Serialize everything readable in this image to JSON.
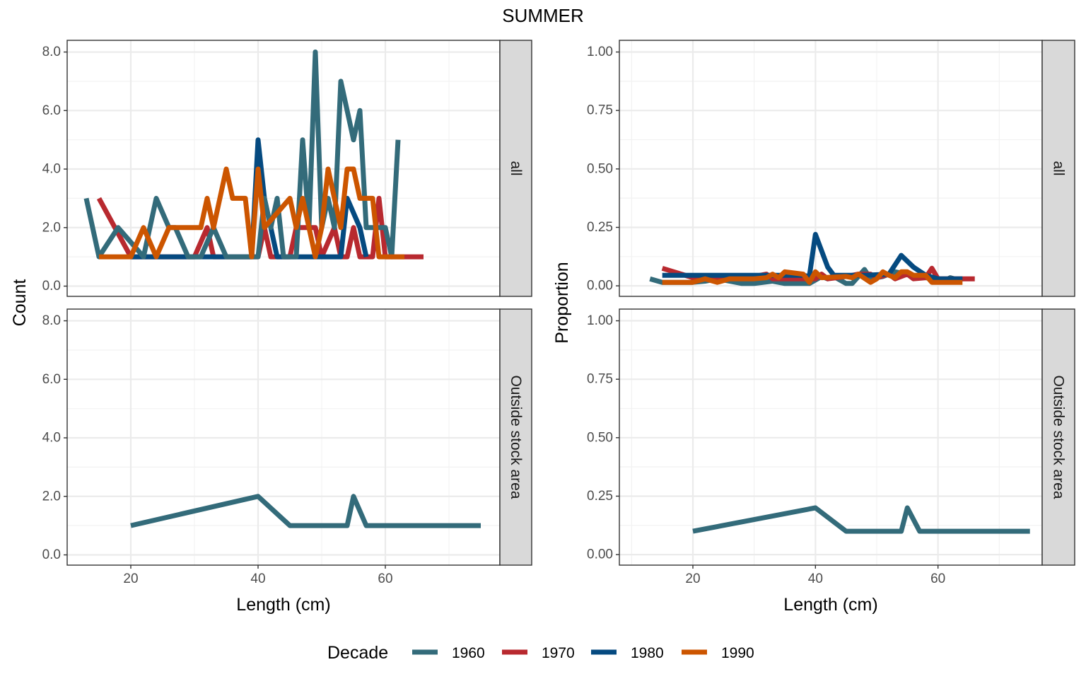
{
  "title": "SUMMER",
  "legend": {
    "title": "Decade",
    "position": "bottom",
    "items": [
      {
        "label": "1960",
        "color": "#336B7A"
      },
      {
        "label": "1970",
        "color": "#B8292F"
      },
      {
        "label": "1980",
        "color": "#054A80"
      },
      {
        "label": "1990",
        "color": "#CC5500"
      }
    ]
  },
  "strips": [
    "all",
    "Outside stock area"
  ],
  "chart_data": [
    {
      "type": "line",
      "xlabel": "Length (cm)",
      "ylabel": "Count",
      "xlim": [
        10,
        78
      ],
      "x_ticks": [
        "20",
        "40",
        "60"
      ],
      "grid": true,
      "facets": [
        {
          "label": "all",
          "ylim": [
            -0.35,
            8.4
          ],
          "y_ticks": [
            "0.0",
            "2.0",
            "4.0",
            "6.0",
            "8.0"
          ],
          "series": [
            {
              "name": "1970",
              "points": [
                [
                  15,
                  3
                ],
                [
                  20,
                  1
                ],
                [
                  30,
                  1
                ],
                [
                  32,
                  2
                ],
                [
                  33,
                  1
                ],
                [
                  40,
                  1
                ],
                [
                  41,
                  2
                ],
                [
                  42,
                  1
                ],
                [
                  45,
                  1
                ],
                [
                  46,
                  2
                ],
                [
                  49,
                  2
                ],
                [
                  50,
                  1
                ],
                [
                  52,
                  2
                ],
                [
                  53,
                  1
                ],
                [
                  54,
                  1
                ],
                [
                  55,
                  2
                ],
                [
                  56,
                  1
                ],
                [
                  58,
                  1
                ],
                [
                  59,
                  3
                ],
                [
                  60,
                  1
                ],
                [
                  66,
                  1
                ]
              ]
            },
            {
              "name": "1980",
              "points": [
                [
                  20,
                  1
                ],
                [
                  39,
                  1
                ],
                [
                  40,
                  5
                ],
                [
                  41,
                  3
                ],
                [
                  42,
                  2
                ],
                [
                  43,
                  1
                ],
                [
                  53,
                  1
                ],
                [
                  54,
                  3
                ],
                [
                  56,
                  2
                ],
                [
                  57,
                  1
                ]
              ]
            },
            {
              "name": "1960",
              "points": [
                [
                  13,
                  3
                ],
                [
                  15,
                  1
                ],
                [
                  18,
                  2
                ],
                [
                  22,
                  1
                ],
                [
                  24,
                  3
                ],
                [
                  26,
                  2
                ],
                [
                  27,
                  2
                ],
                [
                  29,
                  1
                ],
                [
                  31,
                  1
                ],
                [
                  33,
                  2
                ],
                [
                  35,
                  1
                ],
                [
                  37,
                  1
                ],
                [
                  40,
                  1
                ],
                [
                  41,
                  3
                ],
                [
                  42,
                  2
                ],
                [
                  43,
                  3
                ],
                [
                  44,
                  1
                ],
                [
                  45,
                  1
                ],
                [
                  46,
                  1
                ],
                [
                  47,
                  5
                ],
                [
                  48,
                  2
                ],
                [
                  49,
                  8
                ],
                [
                  50,
                  2
                ],
                [
                  51,
                  3
                ],
                [
                  52,
                  2
                ],
                [
                  53,
                  7
                ],
                [
                  54,
                  6
                ],
                [
                  55,
                  5
                ],
                [
                  56,
                  6
                ],
                [
                  57,
                  2
                ],
                [
                  58,
                  2
                ],
                [
                  59,
                  2
                ],
                [
                  60,
                  2
                ],
                [
                  61,
                  1
                ],
                [
                  62,
                  5
                ]
              ]
            },
            {
              "name": "1990",
              "points": [
                [
                  15,
                  1
                ],
                [
                  20,
                  1
                ],
                [
                  22,
                  2
                ],
                [
                  24,
                  1
                ],
                [
                  26,
                  2
                ],
                [
                  30,
                  2
                ],
                [
                  31,
                  2
                ],
                [
                  32,
                  3
                ],
                [
                  33,
                  2
                ],
                [
                  35,
                  4
                ],
                [
                  36,
                  3
                ],
                [
                  38,
                  3
                ],
                [
                  39,
                  1
                ],
                [
                  40,
                  4
                ],
                [
                  41,
                  2
                ],
                [
                  45,
                  3
                ],
                [
                  46,
                  2
                ],
                [
                  47,
                  3
                ],
                [
                  49,
                  1
                ],
                [
                  50,
                  2
                ],
                [
                  51,
                  4
                ],
                [
                  52,
                  3
                ],
                [
                  53,
                  2
                ],
                [
                  54,
                  4
                ],
                [
                  55,
                  4
                ],
                [
                  56,
                  3
                ],
                [
                  58,
                  3
                ],
                [
                  59,
                  1
                ],
                [
                  63,
                  1
                ]
              ]
            }
          ]
        },
        {
          "label": "Outside stock area",
          "ylim": [
            -0.35,
            8.4
          ],
          "y_ticks": [
            "0.0",
            "2.0",
            "4.0",
            "6.0",
            "8.0"
          ],
          "series": [
            {
              "name": "1960",
              "points": [
                [
                  20,
                  1
                ],
                [
                  40,
                  2
                ],
                [
                  45,
                  1
                ],
                [
                  54,
                  1
                ],
                [
                  55,
                  2
                ],
                [
                  57,
                  1
                ],
                [
                  75,
                  1
                ]
              ]
            }
          ]
        }
      ]
    },
    {
      "type": "line",
      "xlabel": "Length (cm)",
      "ylabel": "Proportion",
      "xlim": [
        8,
        77
      ],
      "x_ticks": [
        "20",
        "40",
        "60"
      ],
      "grid": true,
      "facets": [
        {
          "label": "all",
          "ylim": [
            -0.045,
            1.05
          ],
          "y_ticks": [
            "0.00",
            "0.25",
            "0.50",
            "0.75",
            "1.00"
          ],
          "series": [
            {
              "name": "1960",
              "points": [
                [
                  13,
                  0.03
                ],
                [
                  15,
                  0.015
                ],
                [
                  20,
                  0.015
                ],
                [
                  22,
                  0.02
                ],
                [
                  24,
                  0.03
                ],
                [
                  28,
                  0.01
                ],
                [
                  30,
                  0.01
                ],
                [
                  33,
                  0.02
                ],
                [
                  35,
                  0.01
                ],
                [
                  39,
                  0.01
                ],
                [
                  41,
                  0.04
                ],
                [
                  42,
                  0.03
                ],
                [
                  43,
                  0.04
                ],
                [
                  45,
                  0.01
                ],
                [
                  46,
                  0.01
                ],
                [
                  47,
                  0.04
                ],
                [
                  48,
                  0.07
                ],
                [
                  49,
                  0.03
                ],
                [
                  51,
                  0.04
                ],
                [
                  53,
                  0.06
                ],
                [
                  55,
                  0.05
                ],
                [
                  57,
                  0.04
                ],
                [
                  59,
                  0.03
                ],
                [
                  61,
                  0.02
                ],
                [
                  62,
                  0.035
                ],
                [
                  64,
                  0.02
                ]
              ]
            },
            {
              "name": "1970",
              "points": [
                [
                  15,
                  0.075
                ],
                [
                  20,
                  0.035
                ],
                [
                  30,
                  0.04
                ],
                [
                  32,
                  0.05
                ],
                [
                  33,
                  0.03
                ],
                [
                  40,
                  0.03
                ],
                [
                  41,
                  0.05
                ],
                [
                  42,
                  0.03
                ],
                [
                  45,
                  0.04
                ],
                [
                  47,
                  0.05
                ],
                [
                  49,
                  0.05
                ],
                [
                  50,
                  0.035
                ],
                [
                  52,
                  0.05
                ],
                [
                  53,
                  0.03
                ],
                [
                  55,
                  0.05
                ],
                [
                  56,
                  0.03
                ],
                [
                  58,
                  0.035
                ],
                [
                  59,
                  0.075
                ],
                [
                  60,
                  0.03
                ],
                [
                  66,
                  0.03
                ]
              ]
            },
            {
              "name": "1980",
              "points": [
                [
                  15,
                  0.045
                ],
                [
                  20,
                  0.045
                ],
                [
                  38,
                  0.045
                ],
                [
                  39,
                  0.04
                ],
                [
                  40,
                  0.22
                ],
                [
                  41,
                  0.15
                ],
                [
                  42,
                  0.08
                ],
                [
                  43,
                  0.045
                ],
                [
                  48,
                  0.045
                ],
                [
                  52,
                  0.05
                ],
                [
                  54,
                  0.13
                ],
                [
                  56,
                  0.08
                ],
                [
                  58,
                  0.045
                ],
                [
                  60,
                  0.03
                ],
                [
                  64,
                  0.03
                ]
              ]
            },
            {
              "name": "1990",
              "points": [
                [
                  15,
                  0.015
                ],
                [
                  20,
                  0.015
                ],
                [
                  22,
                  0.03
                ],
                [
                  24,
                  0.015
                ],
                [
                  26,
                  0.03
                ],
                [
                  30,
                  0.03
                ],
                [
                  32,
                  0.035
                ],
                [
                  33,
                  0.05
                ],
                [
                  34,
                  0.035
                ],
                [
                  35,
                  0.06
                ],
                [
                  38,
                  0.05
                ],
                [
                  39,
                  0.015
                ],
                [
                  40,
                  0.06
                ],
                [
                  41,
                  0.035
                ],
                [
                  45,
                  0.04
                ],
                [
                  46,
                  0.035
                ],
                [
                  47,
                  0.05
                ],
                [
                  49,
                  0.015
                ],
                [
                  50,
                  0.03
                ],
                [
                  51,
                  0.06
                ],
                [
                  52,
                  0.045
                ],
                [
                  53,
                  0.035
                ],
                [
                  54,
                  0.06
                ],
                [
                  55,
                  0.06
                ],
                [
                  56,
                  0.045
                ],
                [
                  58,
                  0.045
                ],
                [
                  59,
                  0.015
                ],
                [
                  64,
                  0.015
                ]
              ]
            }
          ]
        },
        {
          "label": "Outside stock area",
          "ylim": [
            -0.045,
            1.05
          ],
          "y_ticks": [
            "0.00",
            "0.25",
            "0.50",
            "0.75",
            "1.00"
          ],
          "series": [
            {
              "name": "1960",
              "points": [
                [
                  20,
                  0.1
                ],
                [
                  40,
                  0.2
                ],
                [
                  45,
                  0.1
                ],
                [
                  54,
                  0.1
                ],
                [
                  55,
                  0.2
                ],
                [
                  57,
                  0.1
                ],
                [
                  75,
                  0.1
                ]
              ]
            }
          ]
        }
      ]
    }
  ]
}
